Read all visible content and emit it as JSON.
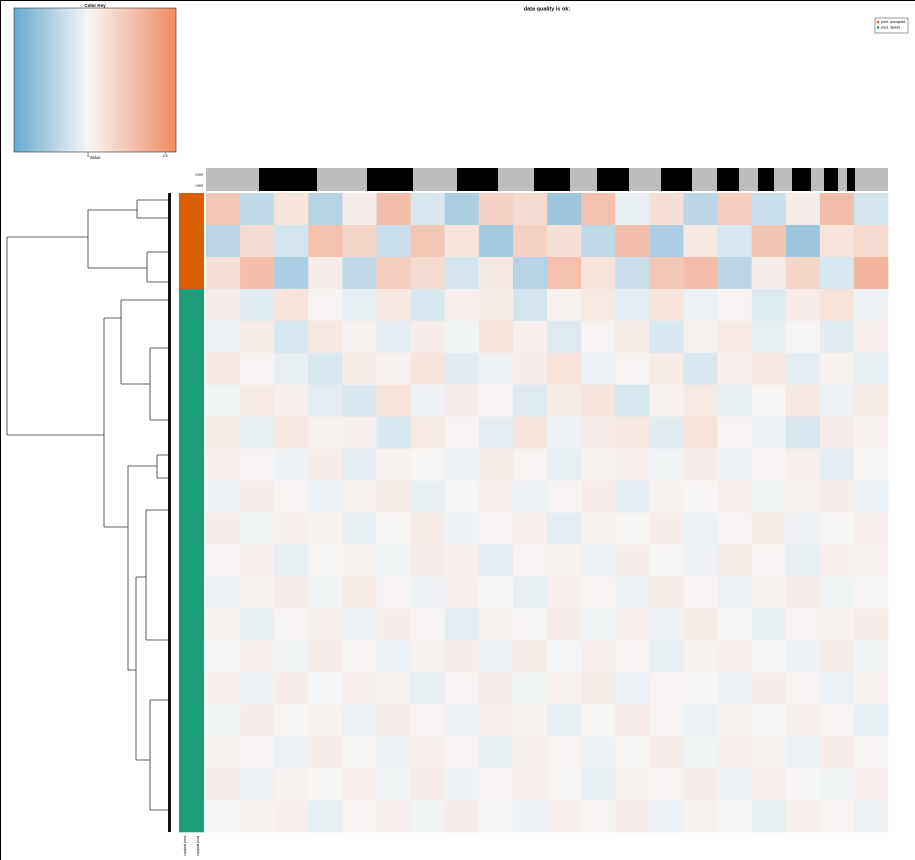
{
  "chart_data": {
    "type": "heatmap",
    "title": "data quality is ok:",
    "color_key": {
      "title": "Color Key",
      "xlabel": "Value",
      "xlim": [
        -0.48,
        0.57
      ],
      "xticks": [
        0,
        0.5
      ],
      "low_color": "#67a9cf",
      "mid_color": "#f7f7f7",
      "high_color": "#ef8a62"
    },
    "legend": {
      "position": "upper right",
      "entries": [
        {
          "name": "pred. aneuploid",
          "color": "#d95f02"
        },
        {
          "name": "pred. diploid",
          "color": "#1b9e77"
        }
      ]
    },
    "row_labels": [
      "CHR",
      "CHR"
    ],
    "col_labels": [
      "copykat.pred",
      "copykat.pred"
    ],
    "row_groups": [
      "pred. aneuploid",
      "pred. aneuploid",
      "pred. aneuploid",
      "pred. diploid",
      "pred. diploid",
      "pred. diploid",
      "pred. diploid",
      "pred. diploid",
      "pred. diploid",
      "pred. diploid",
      "pred. diploid",
      "pred. diploid",
      "pred. diploid",
      "pred. diploid",
      "pred. diploid",
      "pred. diploid",
      "pred. diploid",
      "pred. diploid",
      "pred. diploid",
      "pred. diploid"
    ],
    "matrix": [
      [
        0.25,
        -0.18,
        0.1,
        -0.22,
        0.05,
        0.3,
        -0.1,
        -0.25,
        0.2,
        0.15,
        -0.3,
        0.28,
        -0.05,
        0.12,
        -0.2,
        0.22,
        -0.15,
        0.05,
        0.3,
        -0.12
      ],
      [
        -0.2,
        0.15,
        -0.12,
        0.28,
        0.18,
        -0.15,
        0.25,
        0.1,
        -0.28,
        0.2,
        0.12,
        -0.18,
        0.3,
        -0.25,
        0.08,
        -0.1,
        0.26,
        -0.3,
        0.1,
        0.15
      ],
      [
        0.12,
        0.3,
        -0.25,
        0.05,
        -0.18,
        0.22,
        0.15,
        -0.12,
        0.08,
        -0.22,
        0.28,
        0.1,
        -0.15,
        0.25,
        0.3,
        -0.2,
        0.05,
        0.18,
        -0.1,
        0.35
      ],
      [
        0.05,
        -0.08,
        0.1,
        0.02,
        -0.05,
        0.08,
        -0.1,
        0.04,
        0.06,
        -0.12,
        0.03,
        0.07,
        -0.06,
        0.09,
        -0.04,
        0.02,
        -0.08,
        0.05,
        0.1,
        -0.03
      ],
      [
        -0.04,
        0.06,
        -0.1,
        0.08,
        0.03,
        -0.06,
        0.05,
        -0.02,
        0.1,
        0.04,
        -0.08,
        0.02,
        0.06,
        -0.1,
        0.03,
        0.07,
        -0.05,
        0.01,
        -0.07,
        0.04
      ],
      [
        0.08,
        0.02,
        -0.05,
        -0.1,
        0.06,
        0.03,
        0.09,
        -0.07,
        -0.03,
        0.05,
        0.1,
        -0.04,
        0.02,
        0.06,
        -0.09,
        0.04,
        0.08,
        -0.06,
        0.03,
        -0.05
      ],
      [
        -0.02,
        0.07,
        0.04,
        -0.06,
        -0.09,
        0.1,
        -0.03,
        0.05,
        0.02,
        -0.08,
        0.06,
        0.09,
        -0.1,
        0.03,
        0.07,
        -0.05,
        0.01,
        0.08,
        -0.04,
        0.06
      ],
      [
        0.06,
        -0.05,
        0.08,
        0.03,
        0.04,
        -0.1,
        0.07,
        0.02,
        -0.06,
        0.09,
        -0.03,
        0.05,
        0.08,
        -0.07,
        0.1,
        0.02,
        -0.04,
        -0.09,
        0.05,
        0.03
      ],
      [
        0.04,
        0.02,
        -0.03,
        0.05,
        -0.06,
        0.03,
        0.01,
        -0.04,
        0.06,
        0.02,
        -0.05,
        0.03,
        0.04,
        -0.02,
        0.05,
        -0.03,
        0.02,
        0.04,
        -0.06,
        0.01
      ],
      [
        -0.03,
        0.05,
        0.02,
        -0.04,
        0.03,
        0.06,
        -0.05,
        0.01,
        0.04,
        -0.03,
        0.02,
        0.05,
        -0.06,
        0.03,
        0.01,
        0.04,
        -0.02,
        0.03,
        0.05,
        -0.04
      ],
      [
        0.05,
        -0.02,
        0.04,
        0.03,
        -0.05,
        0.01,
        0.06,
        -0.03,
        0.02,
        0.04,
        -0.06,
        0.03,
        0.01,
        0.05,
        -0.04,
        0.02,
        0.06,
        -0.03,
        0.01,
        0.04
      ],
      [
        0.02,
        0.04,
        -0.05,
        0.01,
        0.03,
        -0.02,
        0.05,
        0.04,
        -0.06,
        0.02,
        0.03,
        -0.04,
        0.05,
        0.01,
        -0.03,
        0.06,
        0.02,
        -0.05,
        0.04,
        0.03
      ],
      [
        -0.04,
        0.03,
        0.05,
        -0.02,
        0.06,
        0.02,
        -0.03,
        0.04,
        0.01,
        -0.05,
        0.04,
        0.02,
        -0.03,
        0.06,
        0.02,
        -0.04,
        0.03,
        0.05,
        -0.02,
        0.01
      ],
      [
        0.03,
        -0.05,
        0.02,
        0.04,
        -0.03,
        0.05,
        0.02,
        -0.06,
        0.03,
        0.01,
        0.05,
        -0.02,
        0.04,
        -0.03,
        0.06,
        0.01,
        -0.05,
        0.02,
        0.03,
        0.05
      ],
      [
        0.01,
        0.04,
        -0.02,
        0.05,
        0.02,
        -0.04,
        0.03,
        0.05,
        -0.03,
        0.06,
        -0.01,
        0.04,
        0.02,
        -0.05,
        0.03,
        0.04,
        0.01,
        -0.03,
        0.05,
        -0.02
      ],
      [
        0.04,
        -0.03,
        0.05,
        -0.01,
        0.04,
        0.03,
        -0.05,
        0.02,
        0.05,
        -0.02,
        0.03,
        0.06,
        -0.04,
        0.02,
        0.01,
        -0.03,
        0.05,
        0.02,
        -0.04,
        0.03
      ],
      [
        -0.02,
        0.05,
        0.01,
        0.03,
        -0.04,
        0.05,
        0.02,
        -0.03,
        0.04,
        0.03,
        -0.05,
        0.01,
        0.05,
        0.02,
        -0.04,
        0.03,
        -0.01,
        0.04,
        0.02,
        -0.05
      ],
      [
        0.03,
        0.02,
        -0.04,
        0.05,
        0.01,
        -0.03,
        0.04,
        0.02,
        -0.05,
        0.04,
        0.02,
        -0.03,
        0.01,
        0.05,
        -0.02,
        0.04,
        0.03,
        -0.04,
        0.05,
        0.02
      ],
      [
        0.05,
        -0.04,
        0.03,
        0.01,
        0.04,
        -0.02,
        0.05,
        -0.03,
        0.02,
        0.04,
        0.01,
        -0.05,
        0.03,
        0.02,
        0.05,
        -0.03,
        0.04,
        0.01,
        -0.02,
        0.04
      ],
      [
        -0.01,
        0.03,
        0.04,
        -0.05,
        0.02,
        0.04,
        -0.02,
        0.05,
        0.01,
        -0.03,
        0.04,
        0.02,
        0.05,
        -0.04,
        0.03,
        0.01,
        -0.05,
        0.04,
        0.02,
        -0.03
      ]
    ]
  }
}
